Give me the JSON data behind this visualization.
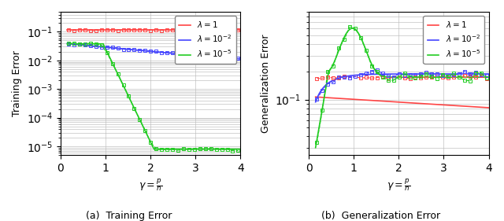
{
  "title_a": "(a)  Training Error",
  "title_b": "(b)  Generalization Error",
  "xlabel": "$\\gamma = \\frac{p}{n}$",
  "ylabel_a": "Training Error",
  "ylabel_b": "Generalization Error",
  "colors": {
    "lambda1": "#ff4444",
    "lambda2": "#4444ff",
    "lambda3": "#22cc22"
  },
  "legend_labels": [
    "$\\lambda = 1$",
    "$\\lambda = 10^{-2}$",
    "$\\lambda = 10^{-5}$"
  ],
  "ylim_a": [
    5e-06,
    0.5
  ],
  "ylim_b": [
    0.025,
    0.9
  ],
  "xlim": [
    0,
    4.0
  ],
  "xticks": [
    0,
    1,
    2,
    3,
    4
  ]
}
